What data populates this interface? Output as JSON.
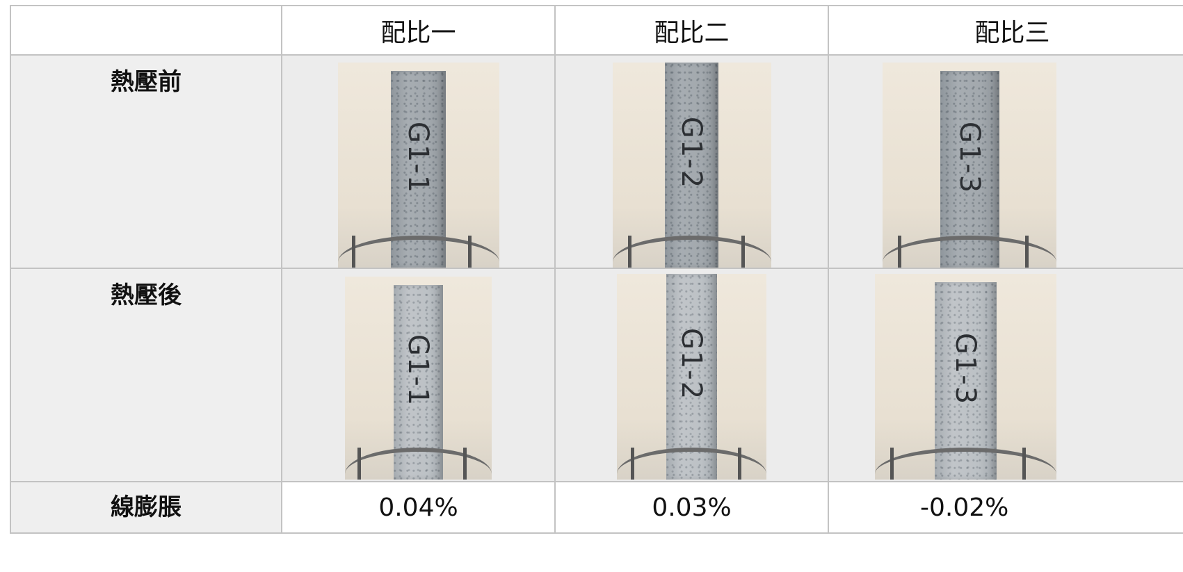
{
  "table": {
    "headers": [
      "",
      "配比一",
      "配比二",
      "配比三"
    ],
    "rows": [
      {
        "label": "熱壓前",
        "specimens": [
          {
            "label": "G1-1",
            "icon": "specimen-photo"
          },
          {
            "label": "G1-2",
            "icon": "specimen-photo"
          },
          {
            "label": "G1-3",
            "icon": "specimen-photo"
          }
        ]
      },
      {
        "label": "熱壓後",
        "specimens": [
          {
            "label": "G1-1",
            "icon": "specimen-photo"
          },
          {
            "label": "G1-2",
            "icon": "specimen-photo"
          },
          {
            "label": "G1-3",
            "icon": "specimen-photo"
          }
        ]
      }
    ],
    "footer": {
      "label": "線膨脹",
      "values": [
        "0.04%",
        "0.03%",
        "-0.02%"
      ]
    }
  },
  "colors": {
    "border": "#c3c3c3",
    "label_bg": "#efefef",
    "image_cell_bg": "#ececec"
  }
}
